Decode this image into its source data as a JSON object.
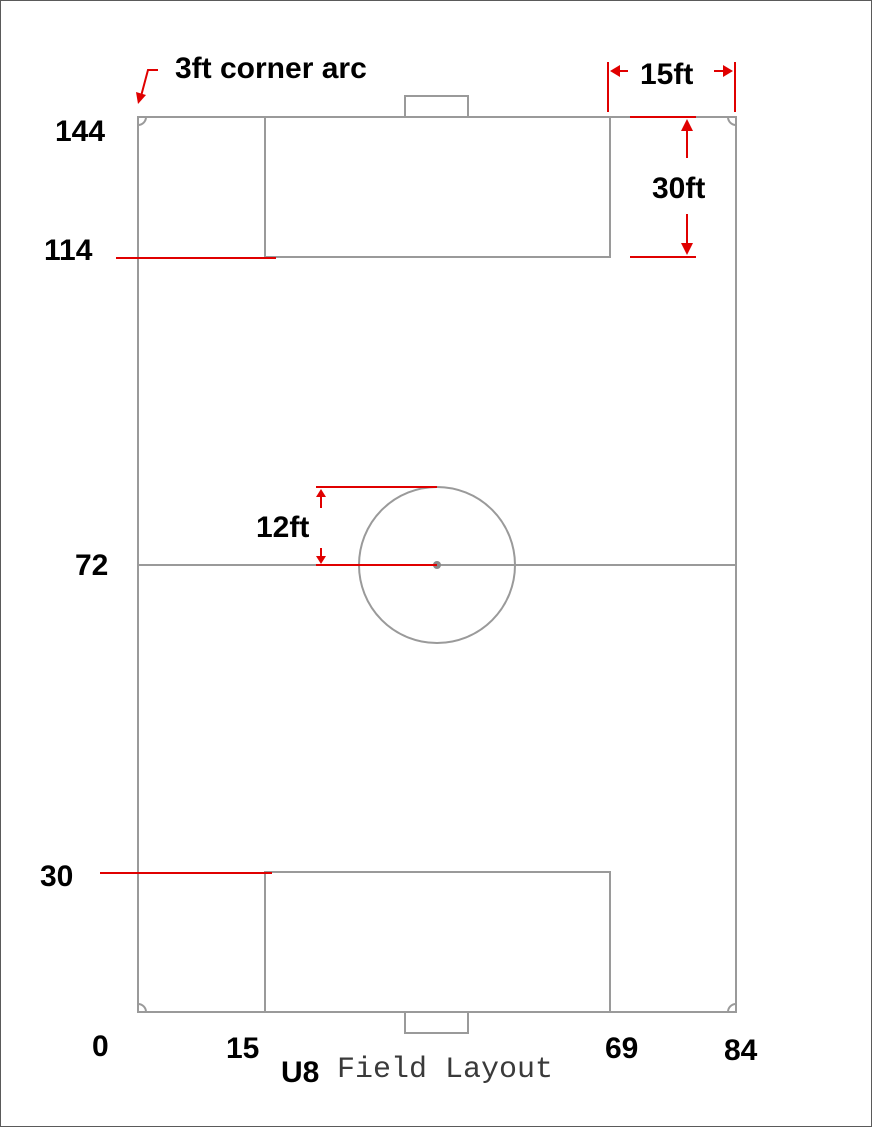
{
  "diagram": {
    "title_prefix": "U8",
    "title_suffix": "Field Layout",
    "corner_arc_label": "3ft corner arc",
    "dimensions": {
      "goal_area_offset": "15ft",
      "goal_area_depth": "30ft",
      "center_circle_radius": "12ft"
    },
    "y_labels": [
      "144",
      "114",
      "72",
      "30",
      "0"
    ],
    "x_labels": [
      "15",
      "69",
      "84"
    ],
    "colors": {
      "field_lines": "#9a9a9a",
      "dimension_lines": "#e00000",
      "text": "#000000"
    }
  }
}
